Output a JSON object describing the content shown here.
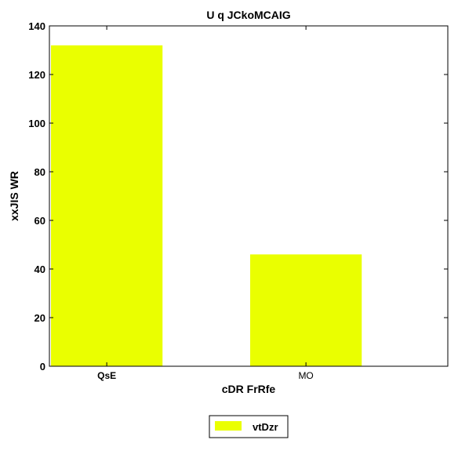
{
  "chart_data": {
    "type": "bar",
    "title": "U q JCkoMCAIG",
    "xlabel": "cDR FrRfe",
    "ylabel": "xxJIS WR",
    "categories": [
      "QsE",
      "MO"
    ],
    "series": [
      {
        "name": "vtDzr",
        "values": [
          132,
          46
        ],
        "color": "#eaff00"
      }
    ],
    "ylim": [
      0,
      140
    ],
    "yticks": [
      0,
      20,
      40,
      60,
      80,
      100,
      120,
      140
    ],
    "grid": false,
    "legend_position": "bottom-center"
  }
}
